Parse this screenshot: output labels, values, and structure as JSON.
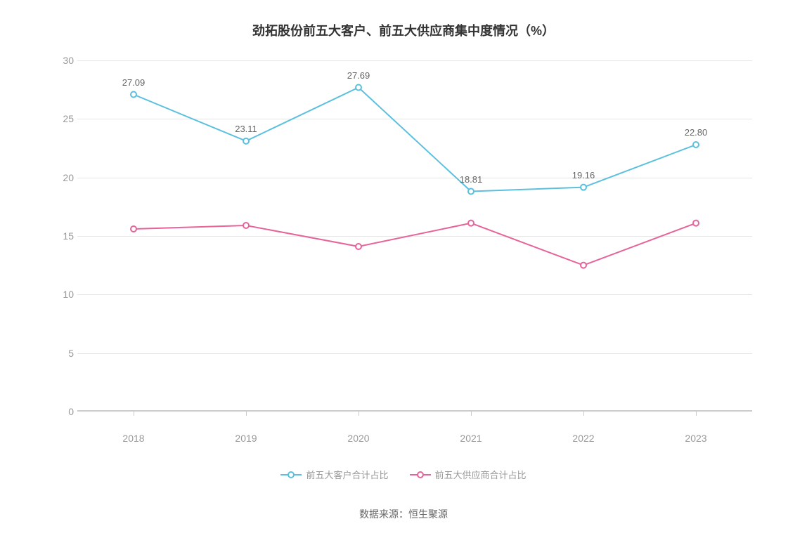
{
  "chart": {
    "type": "line",
    "title": "劲拓股份前五大客户、前五大供应商集中度情况（%）",
    "title_fontsize": 18,
    "title_color": "#333333",
    "background_color": "#ffffff",
    "grid_color": "#e6e6e6",
    "axis_color": "#cccccc",
    "label_color": "#999999",
    "data_label_color": "#666666",
    "label_fontsize": 14,
    "data_label_fontsize": 13,
    "x_categories": [
      "2018",
      "2019",
      "2020",
      "2021",
      "2022",
      "2023"
    ],
    "ylim": [
      0,
      30
    ],
    "ytick_step": 5,
    "yticks": [
      0,
      5,
      10,
      15,
      20,
      25,
      30
    ],
    "marker_radius": 4,
    "marker_fill": "#ffffff",
    "line_width": 2,
    "series": [
      {
        "name": "前五大客户合计占比",
        "color": "#5bc0de",
        "values": [
          27.09,
          23.11,
          27.69,
          18.81,
          19.16,
          22.8
        ],
        "show_labels": true,
        "label_values": [
          "27.09",
          "23.11",
          "27.69",
          "18.81",
          "19.16",
          "22.80"
        ]
      },
      {
        "name": "前五大供应商合计占比",
        "color": "#e6649a",
        "values": [
          15.6,
          15.9,
          14.1,
          16.1,
          12.5,
          16.1
        ],
        "show_labels": false
      }
    ],
    "legend_position": "bottom",
    "data_source_label": "数据来源：恒生聚源"
  }
}
